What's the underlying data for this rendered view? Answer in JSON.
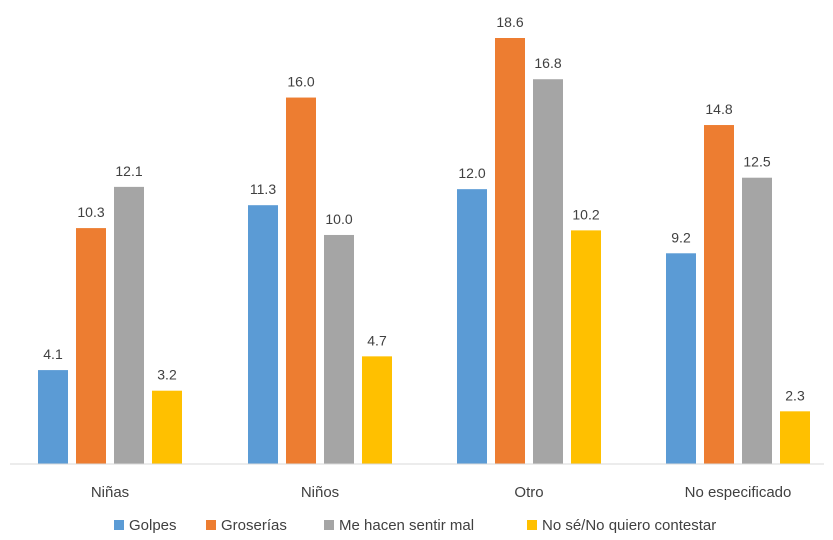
{
  "chart_data": {
    "type": "bar",
    "categories": [
      "Niñas",
      "Niños",
      "Otro",
      "No especificado"
    ],
    "series": [
      {
        "name": "Golpes",
        "color": "#5B9BD5",
        "values": [
          4.1,
          11.3,
          12.0,
          9.2
        ],
        "labels": [
          "4.1",
          "11.3",
          "12.0",
          "9.2"
        ]
      },
      {
        "name": "Groserías",
        "color": "#ED7D31",
        "values": [
          10.3,
          16.0,
          18.6,
          14.8
        ],
        "labels": [
          "10.3",
          "16.0",
          "18.6",
          "14.8"
        ]
      },
      {
        "name": "Me hacen sentir mal",
        "color": "#A5A5A5",
        "values": [
          12.1,
          10.0,
          16.8,
          12.5
        ],
        "labels": [
          "12.1",
          "10.0",
          "16.8",
          "12.5"
        ]
      },
      {
        "name": "No sé/No quiero contestar",
        "color": "#FFC000",
        "values": [
          3.2,
          4.7,
          10.2,
          2.3
        ],
        "labels": [
          "3.2",
          "4.7",
          "10.2",
          "2.3"
        ]
      }
    ],
    "title": "",
    "xlabel": "",
    "ylabel": "",
    "ylim": [
      0,
      20
    ],
    "grid": false,
    "legend_position": "bottom",
    "data_labels": true
  }
}
